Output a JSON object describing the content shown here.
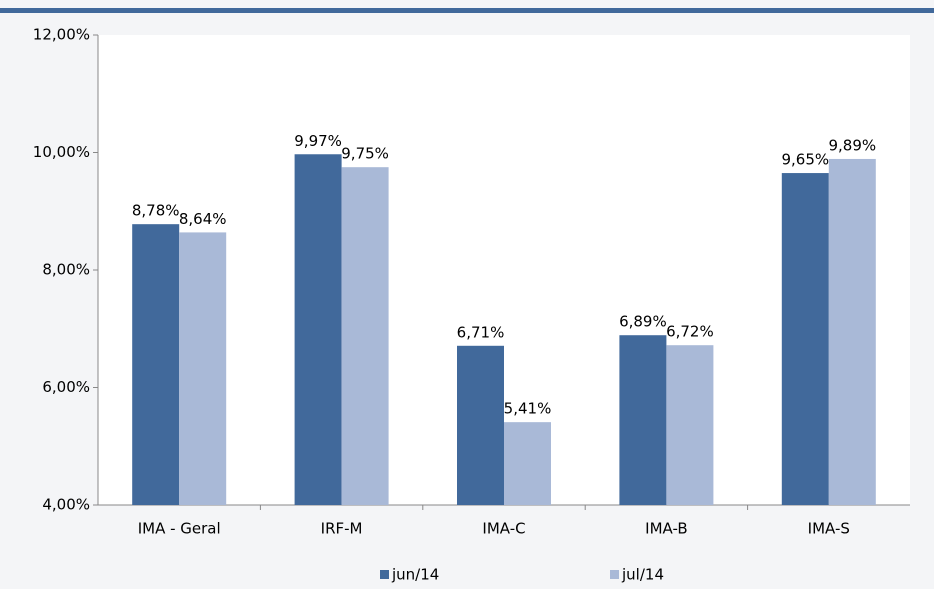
{
  "chart_data": {
    "type": "bar",
    "categories": [
      "IMA - Geral",
      "IRF-M",
      "IMA-C",
      "IMA-B",
      "IMA-S"
    ],
    "series": [
      {
        "name": "jun/14",
        "color": "#41699b",
        "values": [
          8.78,
          9.97,
          6.71,
          6.89,
          9.65
        ],
        "value_labels": [
          "8,78%",
          "9,97%",
          "6,71%",
          "6,89%",
          "9,65%"
        ]
      },
      {
        "name": "jul/14",
        "color": "#a9b9d7",
        "values": [
          8.64,
          9.75,
          5.41,
          6.72,
          9.89
        ],
        "value_labels": [
          "8,64%",
          "9,75%",
          "5,41%",
          "6,72%",
          "9,89%"
        ]
      }
    ],
    "ylim": [
      4,
      12
    ],
    "yticks": [
      {
        "value": 4,
        "label": "4,00%"
      },
      {
        "value": 6,
        "label": "6,00%"
      },
      {
        "value": 8,
        "label": "8,00%"
      },
      {
        "value": 10,
        "label": "10,00%"
      },
      {
        "value": 12,
        "label": "12,00%"
      }
    ],
    "legend": "bottom"
  }
}
